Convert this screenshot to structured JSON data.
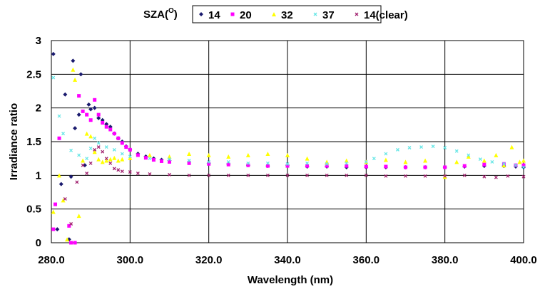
{
  "chart_data": {
    "type": "scatter",
    "xlabel": "Wavelength (nm)",
    "ylabel": "Irradiance ratio",
    "xlim": [
      280,
      400
    ],
    "ylim": [
      0,
      3
    ],
    "x_ticks": [
      "280.0",
      "300.0",
      "320.0",
      "340.0",
      "360.0",
      "380.0",
      "400.0"
    ],
    "y_ticks": [
      "0",
      "0.5",
      "1",
      "1.5",
      "2",
      "2.5",
      "3"
    ],
    "grid": true,
    "legend": {
      "title": "SZA(",
      "title_superscript": "O",
      "title_suffix": ")",
      "placement": "top"
    },
    "series": [
      {
        "name": "14",
        "marker": "diamond",
        "color": "#1a1a6e",
        "points": [
          [
            280.5,
            2.8
          ],
          [
            281.5,
            0.2
          ],
          [
            282.5,
            0.87
          ],
          [
            283.5,
            2.2
          ],
          [
            284.5,
            0.05
          ],
          [
            285,
            0.98
          ],
          [
            285.5,
            2.7
          ],
          [
            286,
            1.7
          ],
          [
            287,
            1.9
          ],
          [
            287.5,
            2.5
          ],
          [
            288.5,
            1.15
          ],
          [
            289.5,
            2.05
          ],
          [
            290,
            1.98
          ],
          [
            291,
            2.0
          ],
          [
            292,
            1.85
          ],
          [
            293,
            1.82
          ],
          [
            294,
            1.76
          ],
          [
            295,
            1.72
          ],
          [
            296,
            1.62
          ],
          [
            297,
            1.55
          ],
          [
            298,
            1.5
          ],
          [
            299,
            1.43
          ],
          [
            300,
            1.38
          ],
          [
            302,
            1.32
          ],
          [
            304,
            1.28
          ],
          [
            306,
            1.25
          ],
          [
            308,
            1.23
          ],
          [
            310,
            1.22
          ],
          [
            315,
            1.2
          ],
          [
            320,
            1.18
          ],
          [
            325,
            1.17
          ],
          [
            330,
            1.15
          ],
          [
            335,
            1.14
          ],
          [
            340,
            1.15
          ],
          [
            345,
            1.13
          ],
          [
            350,
            1.13
          ],
          [
            355,
            1.12
          ],
          [
            360,
            1.12
          ],
          [
            365,
            1.12
          ],
          [
            370,
            1.12
          ],
          [
            375,
            1.12
          ],
          [
            380,
            1.12
          ],
          [
            385,
            1.13
          ],
          [
            390,
            1.14
          ],
          [
            395,
            1.14
          ],
          [
            398,
            1.13
          ],
          [
            400,
            1.12
          ]
        ]
      },
      {
        "name": "20",
        "marker": "square",
        "color": "#ff00ff",
        "points": [
          [
            280.5,
            0.2
          ],
          [
            281,
            0.57
          ],
          [
            282,
            1.55
          ],
          [
            284.5,
            0.25
          ],
          [
            285,
            0.0
          ],
          [
            286,
            0.0
          ],
          [
            287,
            2.18
          ],
          [
            288,
            1.95
          ],
          [
            289,
            1.9
          ],
          [
            290,
            1.82
          ],
          [
            291,
            2.12
          ],
          [
            292,
            1.9
          ],
          [
            293,
            1.78
          ],
          [
            294,
            1.72
          ],
          [
            295,
            1.68
          ],
          [
            296,
            1.62
          ],
          [
            297,
            1.55
          ],
          [
            298,
            1.48
          ],
          [
            299,
            1.42
          ],
          [
            300,
            1.38
          ],
          [
            302,
            1.3
          ],
          [
            304,
            1.26
          ],
          [
            306,
            1.23
          ],
          [
            308,
            1.21
          ],
          [
            310,
            1.2
          ],
          [
            315,
            1.18
          ],
          [
            320,
            1.17
          ],
          [
            325,
            1.16
          ],
          [
            330,
            1.15
          ],
          [
            335,
            1.14
          ],
          [
            340,
            1.14
          ],
          [
            345,
            1.14
          ],
          [
            350,
            1.14
          ],
          [
            355,
            1.14
          ],
          [
            360,
            1.13
          ],
          [
            365,
            1.13
          ],
          [
            370,
            1.12
          ],
          [
            375,
            1.12
          ],
          [
            380,
            1.12
          ],
          [
            385,
            1.14
          ],
          [
            390,
            1.16
          ],
          [
            395,
            1.17
          ],
          [
            398,
            1.15
          ],
          [
            400,
            1.15
          ]
        ]
      },
      {
        "name": "32",
        "marker": "triangle",
        "color": "#ffff00",
        "points": [
          [
            280.5,
            0.46
          ],
          [
            282,
            1.0
          ],
          [
            283,
            0.63
          ],
          [
            284,
            0.05
          ],
          [
            285.5,
            2.57
          ],
          [
            286,
            2.42
          ],
          [
            287,
            0.4
          ],
          [
            288,
            1.22
          ],
          [
            289,
            1.62
          ],
          [
            290,
            1.58
          ],
          [
            291,
            1.35
          ],
          [
            292,
            1.24
          ],
          [
            293,
            1.2
          ],
          [
            294,
            1.22
          ],
          [
            295,
            1.24
          ],
          [
            296,
            1.26
          ],
          [
            297,
            1.22
          ],
          [
            298,
            1.24
          ],
          [
            300,
            1.26
          ],
          [
            305,
            1.3
          ],
          [
            310,
            1.28
          ],
          [
            315,
            1.32
          ],
          [
            320,
            1.3
          ],
          [
            325,
            1.28
          ],
          [
            330,
            1.3
          ],
          [
            335,
            1.32
          ],
          [
            340,
            1.3
          ],
          [
            345,
            1.25
          ],
          [
            350,
            1.2
          ],
          [
            355,
            1.22
          ],
          [
            360,
            1.2
          ],
          [
            365,
            1.23
          ],
          [
            370,
            1.2
          ],
          [
            375,
            1.22
          ],
          [
            380,
            0.98
          ],
          [
            383,
            1.2
          ],
          [
            386,
            1.28
          ],
          [
            390,
            1.22
          ],
          [
            393,
            1.3
          ],
          [
            395,
            1.15
          ],
          [
            397,
            1.42
          ],
          [
            399,
            1.2
          ],
          [
            400,
            1.22
          ]
        ]
      },
      {
        "name": "37",
        "marker": "x",
        "color": "#66e6e6",
        "points": [
          [
            280.5,
            2.45
          ],
          [
            282,
            1.88
          ],
          [
            283,
            1.62
          ],
          [
            285,
            1.37
          ],
          [
            287,
            1.3
          ],
          [
            289,
            1.25
          ],
          [
            290,
            1.4
          ],
          [
            291,
            1.55
          ],
          [
            292,
            1.48
          ],
          [
            294,
            1.42
          ],
          [
            296,
            1.38
          ],
          [
            298,
            1.32
          ],
          [
            300,
            1.28
          ],
          [
            305,
            1.25
          ],
          [
            310,
            1.24
          ],
          [
            315,
            1.22
          ],
          [
            320,
            1.2
          ],
          [
            325,
            1.2
          ],
          [
            330,
            1.18
          ],
          [
            335,
            1.18
          ],
          [
            340,
            1.17
          ],
          [
            345,
            1.18
          ],
          [
            350,
            1.17
          ],
          [
            355,
            1.18
          ],
          [
            360,
            1.2
          ],
          [
            362,
            1.25
          ],
          [
            365,
            1.32
          ],
          [
            368,
            1.38
          ],
          [
            371,
            1.41
          ],
          [
            374,
            1.42
          ],
          [
            377,
            1.43
          ],
          [
            380,
            1.41
          ],
          [
            383,
            1.36
          ],
          [
            386,
            1.3
          ],
          [
            389,
            1.24
          ],
          [
            392,
            1.2
          ],
          [
            395,
            1.17
          ],
          [
            398,
            1.15
          ],
          [
            400,
            1.12
          ]
        ]
      },
      {
        "name": "14(clear)",
        "marker": "x",
        "color": "#a0206e",
        "points": [
          [
            283.5,
            0.65
          ],
          [
            285,
            0.28
          ],
          [
            286.5,
            0.9
          ],
          [
            288,
            1.15
          ],
          [
            289,
            1.03
          ],
          [
            290,
            1.18
          ],
          [
            291,
            1.38
          ],
          [
            292,
            1.42
          ],
          [
            293,
            1.35
          ],
          [
            294,
            1.25
          ],
          [
            295,
            1.18
          ],
          [
            296,
            1.1
          ],
          [
            297,
            1.08
          ],
          [
            298,
            1.06
          ],
          [
            300,
            1.05
          ],
          [
            302,
            1.03
          ],
          [
            305,
            1.02
          ],
          [
            310,
            1.01
          ],
          [
            315,
            1.0
          ],
          [
            320,
            1.0
          ],
          [
            325,
            1.0
          ],
          [
            330,
            1.0
          ],
          [
            335,
            1.0
          ],
          [
            340,
            1.0
          ],
          [
            345,
            1.0
          ],
          [
            350,
            1.0
          ],
          [
            355,
            1.0
          ],
          [
            360,
            1.0
          ],
          [
            365,
            0.99
          ],
          [
            370,
            0.99
          ],
          [
            375,
            0.99
          ],
          [
            380,
            0.99
          ],
          [
            385,
            1.0
          ],
          [
            390,
            0.98
          ],
          [
            393,
            0.97
          ],
          [
            396,
            0.99
          ],
          [
            400,
            0.98
          ]
        ]
      }
    ]
  }
}
